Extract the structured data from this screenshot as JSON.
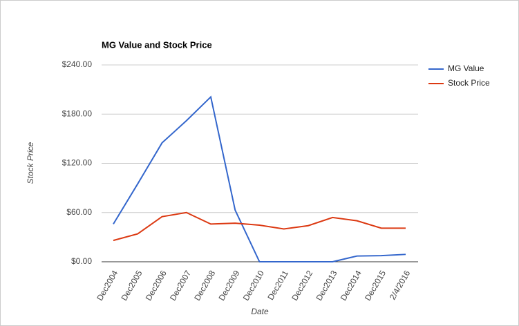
{
  "chart_data": {
    "type": "line",
    "title": "MG Value and Stock Price",
    "x_label": "Date",
    "y_label": "Stock Price",
    "categories": [
      "Dec2004",
      "Dec2005",
      "Dec2006",
      "Dec2007",
      "Dec2008",
      "Dec2009",
      "Dec2010",
      "Dec2011",
      "Dec2012",
      "Dec2013",
      "Dec2014",
      "Dec2015",
      "2/4/2016"
    ],
    "series": [
      {
        "name": "MG Value",
        "color": "#3366cc",
        "values": [
          46,
          95,
          145,
          172,
          201,
          63,
          0,
          0,
          0,
          0,
          7,
          7.5,
          9
        ]
      },
      {
        "name": "Stock Price",
        "color": "#dc3912",
        "values": [
          26,
          34,
          55,
          60,
          46,
          47,
          44.6,
          40,
          44,
          54,
          50,
          41,
          41
        ]
      }
    ],
    "ylim": [
      0,
      240
    ],
    "yticks": [
      {
        "value": 0,
        "label": "$0.00"
      },
      {
        "value": 60,
        "label": "$60.00"
      },
      {
        "value": 120,
        "label": "$120.00"
      },
      {
        "value": 180,
        "label": "$180.00"
      },
      {
        "value": 240,
        "label": "$240.00"
      }
    ],
    "grid": true,
    "legend": "right"
  }
}
